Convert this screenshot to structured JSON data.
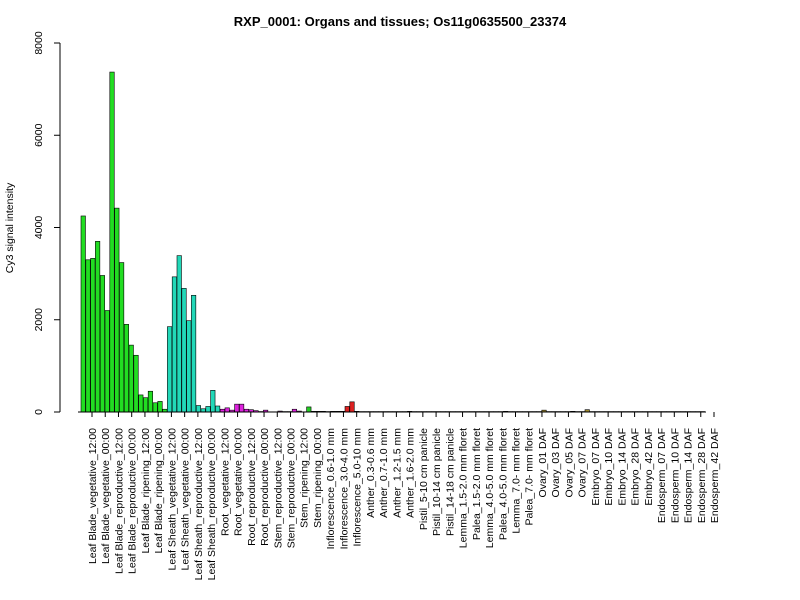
{
  "chart_data": {
    "type": "bar",
    "title": "RXP_0001: Organs and tissues; Os11g0635500_23374",
    "xlabel": "",
    "ylabel": "Cy3 signal intensity",
    "ylim": [
      0,
      8000
    ],
    "yticks": [
      0,
      2000,
      4000,
      6000,
      8000
    ],
    "grid": false,
    "legend": "none",
    "category_labels": [
      "Leaf Blade_vegetative_12:00",
      "Leaf Blade_vegetative_00:00",
      "Leaf Blade_reproductive_12:00",
      "Leaf Blade_reproductive_00:00",
      "Leaf Blade_ripening_12:00",
      "Leaf Blade_ripening_00:00",
      "Leaf Sheath_vegetative_12:00",
      "Leaf Sheath_vegetative_00:00",
      "Leaf Sheath_reproductive_12:00",
      "Leaf Sheath_reproductive_00:00",
      "Root_vegetative_12:00",
      "Root_vegetative_00:00",
      "Root_reproductive_12:00",
      "Root_reproductive_00:00",
      "Stem_reproductive_12:00",
      "Stem_reproductive_00:00",
      "Stem_ripening_12:00",
      "Stem_ripening_00:00",
      "Inflorescence_0.6-1.0 mm",
      "Inflorescence_3.0-4.0 mm",
      "Inflorescence_5.0-10 mm",
      "Anther_0.3-0.6 mm",
      "Anther_0.7-1.0 mm",
      "Anther_1.2-1.5 mm",
      "Anther_1.6-2.0 mm",
      "Pistil_5-10 cm panicle",
      "Pistil_10-14 cm panicle",
      "Pistil_14-18 cm panicle",
      "Lemma_1.5-2.0 mm floret",
      "Palea_1.5-2.0 mm floret",
      "Lemma_4.0-5.0 mm floret",
      "Palea_4.0-5.0 mm floret",
      "Lemma_7.0- mm floret",
      "Palea_7.0- mm floret",
      "Ovary_01 DAF",
      "Ovary_03 DAF",
      "Ovary_05 DAF",
      "Ovary_07 DAF",
      "Embryo_07 DAF",
      "Embryo_10 DAF",
      "Embryo_14 DAF",
      "Embryo_28 DAF",
      "Embryo_42 DAF",
      "Endosperm_07 DAF",
      "Endosperm_10 DAF",
      "Endosperm_14 DAF",
      "Endosperm_28 DAF",
      "Endosperm_42 DAF"
    ],
    "series": [
      {
        "color": "#22dd22",
        "values": [
          4250,
          3300,
          3330,
          3700,
          2960,
          2200,
          7370,
          4420,
          3240,
          1900,
          1450,
          1230,
          370,
          310,
          450,
          200,
          230,
          60
        ]
      },
      {
        "color": "#22d8b8",
        "values": [
          1850,
          2930,
          3390,
          2680,
          1980,
          2530,
          140,
          70,
          120,
          470,
          130
        ]
      },
      {
        "color": "#dd22dd",
        "values": [
          60,
          90,
          40,
          170,
          170,
          60,
          50,
          30,
          10,
          40,
          5,
          5,
          20,
          10,
          10,
          60,
          20,
          5
        ]
      },
      {
        "color": "#22cc22",
        "values": [
          110,
          15,
          15,
          15,
          10,
          15,
          15,
          15
        ]
      },
      {
        "color": "#dd2222",
        "values": [
          120,
          220,
          15,
          10,
          10,
          10,
          10,
          10,
          10,
          10
        ]
      },
      {
        "color": "#a08a30",
        "values": [
          10,
          10,
          10,
          15,
          10,
          10,
          10,
          10,
          10,
          10,
          10,
          10,
          10,
          10,
          10,
          10,
          10,
          10,
          10,
          10,
          10,
          10,
          10,
          15,
          10,
          10,
          10,
          10,
          10,
          10,
          10,
          40,
          10,
          10,
          10,
          10,
          10,
          15,
          10,
          10,
          50,
          10,
          10,
          10,
          10,
          10,
          10,
          10,
          10,
          10,
          10,
          10,
          10,
          10,
          10,
          10,
          10,
          10,
          10,
          10,
          10,
          10,
          10,
          10,
          10
        ]
      }
    ]
  }
}
